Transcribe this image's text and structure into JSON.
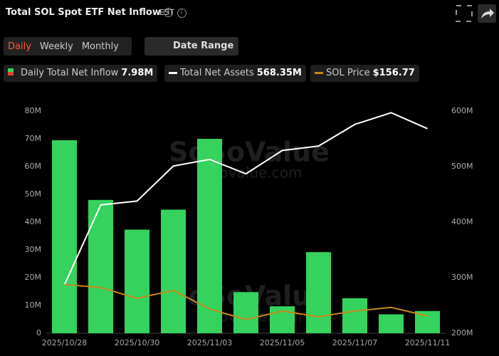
{
  "header": {
    "title": "Total SOL Spot ETF Net Inflow",
    "timezone": "EST",
    "tabs": [
      "Daily",
      "Weekly",
      "Monthly"
    ],
    "date_range": "Date Range"
  },
  "legend": [
    {
      "name": "Daily Total Net Inflow",
      "value": "7.98M"
    },
    {
      "name": "Total Net Assets",
      "value": "568.35M"
    },
    {
      "name": "SOL Price",
      "value": "$156.77"
    }
  ],
  "watermark": {
    "brand": "SoSoValue",
    "url": "sosovalue.com"
  },
  "chart_data": {
    "type": "bar",
    "categories": [
      "2025/10/28",
      null,
      "2025/10/30",
      null,
      "2025/11/03",
      null,
      "2025/11/05",
      null,
      "2025/11/07",
      null,
      "2025/11/11"
    ],
    "series": [
      {
        "name": "Daily Total Net Inflow",
        "type": "bar",
        "color": "#35d35e",
        "values": [
          69.5,
          48,
          37.3,
          44.5,
          70,
          14.8,
          9.7,
          29.2,
          12.6,
          6.8,
          7.98
        ]
      },
      {
        "name": "Total Net Assets",
        "type": "line",
        "axis": "y2",
        "color": "#ffffff",
        "values": [
          287,
          431,
          438,
          501,
          513,
          487,
          529,
          537,
          576,
          597,
          568.35
        ]
      },
      {
        "name": "SOL Price",
        "type": "line",
        "axis": "y3",
        "color": "#c8891a",
        "values": [
          195,
          191.3,
          178.3,
          187.8,
          165.4,
          152.5,
          162.9,
          156,
          162.9,
          167.2,
          156.77
        ]
      }
    ],
    "ylim": [
      0,
      80
    ],
    "yticks": [
      0,
      {
        "value": 10,
        "label": "10M"
      },
      {
        "value": 20,
        "label": "20M"
      },
      {
        "value": 30,
        "label": "30M"
      },
      {
        "value": 40,
        "label": "40M"
      },
      {
        "value": 50,
        "label": "50M"
      },
      {
        "value": 60,
        "label": "60M"
      },
      {
        "value": 70,
        "label": "70M"
      },
      {
        "value": 80,
        "label": "80M"
      }
    ],
    "y2lim": [
      200,
      600
    ],
    "y2ticks": [
      {
        "value": 200,
        "label": "200M"
      },
      {
        "value": 300,
        "label": "300M"
      },
      {
        "value": 400,
        "label": "400M"
      },
      {
        "value": 500,
        "label": "500M"
      },
      {
        "value": 600,
        "label": "600M"
      }
    ],
    "y3lim": [
      136,
      405
    ]
  }
}
